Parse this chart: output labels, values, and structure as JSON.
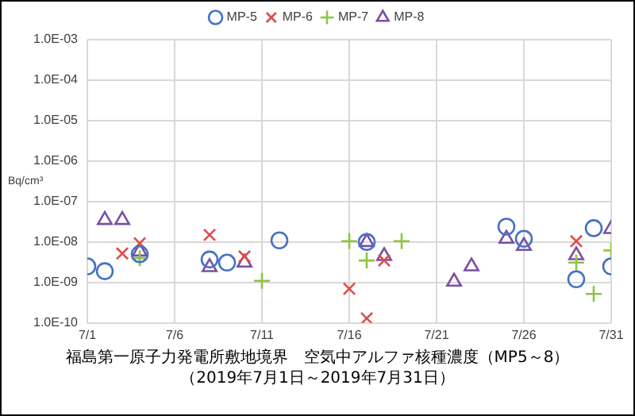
{
  "chart_data": {
    "type": "scatter",
    "title": "福島第一原子力発電所敷地境界　空気中アルファ核種濃度（MP5～8）",
    "subtitle": "（2019年7月1日～2019年7月31日）",
    "ylabel": "Bq/cm³",
    "log": "y",
    "grid": true,
    "legend": "top",
    "xlim": [
      "2019-07-01",
      "2019-07-31"
    ],
    "xticks": [
      {
        "value": "2019-07-01",
        "label": "7/1"
      },
      {
        "value": "2019-07-06",
        "label": "7/6"
      },
      {
        "value": "2019-07-11",
        "label": "7/11"
      },
      {
        "value": "2019-07-16",
        "label": "7/16"
      },
      {
        "value": "2019-07-21",
        "label": "7/21"
      },
      {
        "value": "2019-07-26",
        "label": "7/26"
      },
      {
        "value": "2019-07-31",
        "label": "7/31"
      }
    ],
    "ylim": [
      1e-10,
      0.001
    ],
    "yticks": [
      {
        "value": 1e-10,
        "label": "1.0E-10"
      },
      {
        "value": 1e-09,
        "label": "1.0E-09"
      },
      {
        "value": 1e-08,
        "label": "1.0E-08"
      },
      {
        "value": 1e-07,
        "label": "1.0E-07"
      },
      {
        "value": 1e-06,
        "label": "1.0E-06"
      },
      {
        "value": 1e-05,
        "label": "1.0E-05"
      },
      {
        "value": 0.0001,
        "label": "1.0E-04"
      },
      {
        "value": 0.001,
        "label": "1.0E-03"
      }
    ],
    "series": [
      {
        "name": "MP-5",
        "color": "#4472c4",
        "marker": "circle",
        "x": [
          "2019-07-01",
          "2019-07-02",
          "2019-07-04",
          "2019-07-08",
          "2019-07-09",
          "2019-07-12",
          "2019-07-17",
          "2019-07-25",
          "2019-07-26",
          "2019-07-29",
          "2019-07-30",
          "2019-07-31"
        ],
        "values": [
          2.5e-09,
          1.9e-09,
          5e-09,
          3.7e-09,
          3.1e-09,
          1.1e-08,
          1e-08,
          2.4e-08,
          1.2e-08,
          1.2e-09,
          2.2e-08,
          2.5e-09
        ]
      },
      {
        "name": "MP-6",
        "color": "#e04b4b",
        "marker": "x",
        "x": [
          "2019-07-03",
          "2019-07-04",
          "2019-07-08",
          "2019-07-10",
          "2019-07-16",
          "2019-07-17",
          "2019-07-18",
          "2019-07-29"
        ],
        "values": [
          5.2e-09,
          9.3e-09,
          1.5e-08,
          4.4e-09,
          7e-10,
          1.3e-10,
          3.5e-09,
          1.05e-08
        ]
      },
      {
        "name": "MP-7",
        "color": "#8cc63f",
        "marker": "cross",
        "x": [
          "2019-07-04",
          "2019-07-11",
          "2019-07-16",
          "2019-07-17",
          "2019-07-19",
          "2019-07-29",
          "2019-07-30",
          "2019-07-31"
        ],
        "values": [
          4e-09,
          1.1e-09,
          1.05e-08,
          3.5e-09,
          1.05e-08,
          3.1e-09,
          5.2e-10,
          6.2e-09
        ]
      },
      {
        "name": "MP-8",
        "color": "#7a4fa3",
        "marker": "triangle",
        "x": [
          "2019-07-02",
          "2019-07-03",
          "2019-07-04",
          "2019-07-08",
          "2019-07-10",
          "2019-07-17",
          "2019-07-18",
          "2019-07-22",
          "2019-07-23",
          "2019-07-25",
          "2019-07-26",
          "2019-07-29",
          "2019-07-31"
        ],
        "values": [
          3.5e-08,
          3.5e-08,
          5.8e-09,
          2.4e-09,
          3.1e-09,
          1e-08,
          4.5e-09,
          1.05e-09,
          2.5e-09,
          1.2e-08,
          8e-09,
          4.7e-09,
          2.1e-08
        ]
      }
    ]
  }
}
